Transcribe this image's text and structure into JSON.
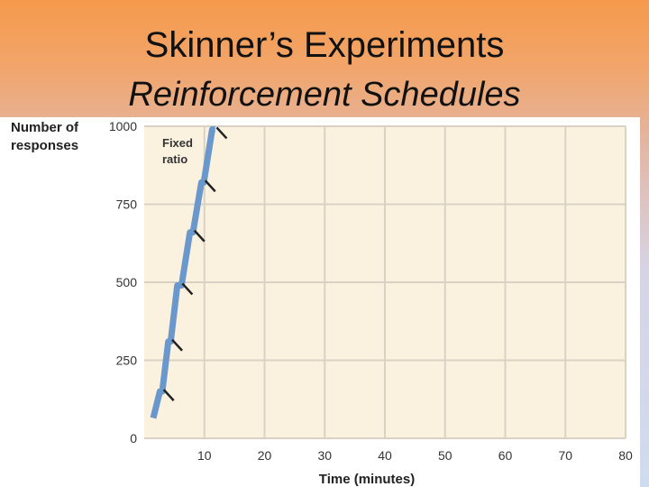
{
  "slide": {
    "title": "Skinner’s Experiments",
    "subtitle": "Reinforcement Schedules"
  },
  "colors": {
    "plot_bg": "#fbf1df",
    "grid": "#d9d2c4",
    "series": "#6a98cc",
    "marks": "#222222"
  },
  "chart_data": {
    "type": "line",
    "title": "",
    "xlabel": "Time (minutes)",
    "ylabel": "Number of responses",
    "xlim": [
      0,
      80
    ],
    "ylim": [
      0,
      1000
    ],
    "xticks": [
      10,
      20,
      30,
      40,
      50,
      60,
      70,
      80
    ],
    "yticks": [
      0,
      250,
      500,
      750,
      1000
    ],
    "grid": true,
    "annotation": "Fixed ratio",
    "series": [
      {
        "name": "",
        "x": [
          1.5,
          2.6,
          3.0,
          4.0,
          4.4,
          5.5,
          6.2,
          7.6,
          8.1,
          9.5,
          9.9,
          11.3,
          11.8
        ],
        "y": [
          65,
          150,
          150,
          310,
          310,
          490,
          490,
          660,
          660,
          820,
          820,
          990,
          990
        ]
      }
    ],
    "reinforcement_points": [
      {
        "x": 2.8,
        "y": 150
      },
      {
        "x": 4.2,
        "y": 310
      },
      {
        "x": 5.9,
        "y": 490
      },
      {
        "x": 7.9,
        "y": 660
      },
      {
        "x": 9.7,
        "y": 820
      },
      {
        "x": 11.6,
        "y": 990
      }
    ]
  }
}
